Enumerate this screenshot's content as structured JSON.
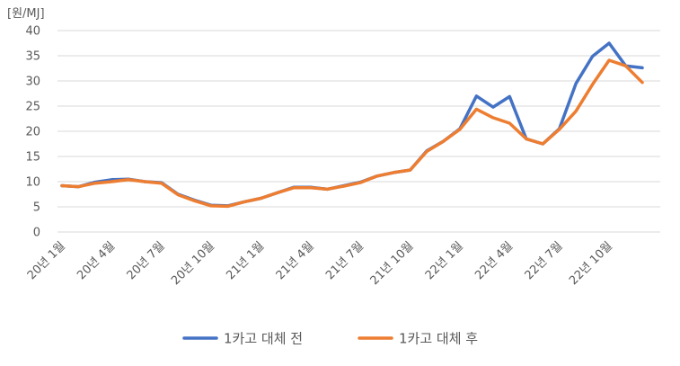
{
  "chart_data": {
    "type": "line",
    "unit_label": "[원/MJ]",
    "ylim": [
      0,
      40
    ],
    "y_ticks": [
      0,
      5,
      10,
      15,
      20,
      25,
      30,
      35,
      40
    ],
    "grid": true,
    "legend_position": "bottom",
    "x": [
      "20년 1월",
      "20년 2월",
      "20년 3월",
      "20년 4월",
      "20년 5월",
      "20년 6월",
      "20년 7월",
      "20년 8월",
      "20년 9월",
      "20년 10월",
      "20년 11월",
      "20년 12월",
      "21년 1월",
      "21년 2월",
      "21년 3월",
      "21년 4월",
      "21년 5월",
      "21년 6월",
      "21년 7월",
      "21년 8월",
      "21년 9월",
      "21년 10월",
      "21년 11월",
      "21년 12월",
      "22년 1월",
      "22년 2월",
      "22년 3월",
      "22년 4월",
      "22년 5월",
      "22년 6월",
      "22년 7월",
      "22년 8월",
      "22년 9월",
      "22년 10월",
      "22년 11월",
      "22년 12월"
    ],
    "x_tick_labels": [
      "20년 1월",
      "20년 4월",
      "20년 7월",
      "20년 10월",
      "21년 1월",
      "21년 4월",
      "21년 7월",
      "21년 10월",
      "22년 1월",
      "22년 4월",
      "22년 7월",
      "22년 10월"
    ],
    "series": [
      {
        "name": "1카고 대체 전",
        "color": "#4472c4",
        "values": [
          9.2,
          9.0,
          9.9,
          10.4,
          10.5,
          10.0,
          9.8,
          7.5,
          6.3,
          5.3,
          5.2,
          6.0,
          6.7,
          7.8,
          8.9,
          8.9,
          8.5,
          9.2,
          9.9,
          11.1,
          11.8,
          12.3,
          16.1,
          18.0,
          20.5,
          27.0,
          24.8,
          26.9,
          18.5,
          17.5,
          20.5,
          29.5,
          34.9,
          37.5,
          33.0,
          32.6
        ]
      },
      {
        "name": "1카고 대체 후",
        "color": "#ed7d31",
        "values": [
          9.2,
          9.0,
          9.7,
          10.0,
          10.4,
          10.0,
          9.7,
          7.4,
          6.2,
          5.2,
          5.1,
          6.0,
          6.7,
          7.8,
          8.8,
          8.8,
          8.5,
          9.1,
          9.8,
          11.1,
          11.8,
          12.3,
          16.0,
          18.0,
          20.4,
          24.4,
          22.7,
          21.6,
          18.5,
          17.5,
          20.4,
          24.0,
          29.3,
          34.1,
          33.0,
          29.7
        ]
      }
    ]
  }
}
